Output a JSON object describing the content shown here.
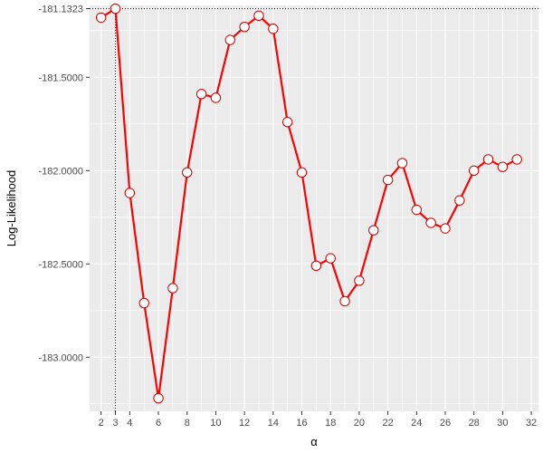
{
  "chart_data": {
    "type": "line",
    "title": "",
    "xlabel": "α",
    "ylabel": "Log-Likelihood",
    "xlim": [
      1.2,
      32.5
    ],
    "ylim": [
      -183.29,
      -181.115
    ],
    "x_ticks": [
      2,
      3,
      4,
      6,
      8,
      10,
      12,
      14,
      16,
      18,
      20,
      22,
      24,
      26,
      28,
      30,
      32
    ],
    "x_tick_labels": [
      "2",
      "3",
      "4",
      "6",
      "8",
      "10",
      "12",
      "14",
      "16",
      "18",
      "20",
      "22",
      "24",
      "26",
      "28",
      "30",
      "32"
    ],
    "x_minor_ticks": [
      5,
      7,
      9,
      11,
      13,
      15,
      17,
      19,
      21,
      23,
      25,
      27,
      29,
      31
    ],
    "y_ticks": [
      -183.0,
      -182.5,
      -182.0,
      -181.5,
      -181.1323
    ],
    "y_tick_labels": [
      "-183.0000",
      "-182.5000",
      "-182.0000",
      "-181.5000",
      "-181.1323"
    ],
    "y_minor_ticks": [
      -183.25,
      -182.75,
      -182.25,
      -181.75,
      -181.25
    ],
    "grid": true,
    "reference_lines": {
      "x": 3,
      "y": -181.1323
    },
    "series": [
      {
        "x": [
          2,
          3,
          4,
          5,
          6,
          7,
          8,
          9,
          10,
          11,
          12,
          13,
          14,
          15,
          16,
          17,
          18,
          19,
          20,
          21,
          22,
          23,
          24,
          25,
          26,
          27,
          28,
          29,
          30,
          31
        ],
        "values": [
          -181.18,
          -181.1323,
          -182.12,
          -182.71,
          -183.22,
          -182.63,
          -182.01,
          -181.59,
          -181.61,
          -181.3,
          -181.23,
          -181.17,
          -181.24,
          -181.74,
          -182.01,
          -182.51,
          -182.47,
          -182.7,
          -182.59,
          -182.32,
          -182.05,
          -181.96,
          -182.21,
          -182.28,
          -182.31,
          -182.16,
          -182.0,
          -181.94,
          -181.98,
          -181.94
        ]
      }
    ],
    "colors": {
      "line": "#ff0000",
      "marker_edge": "#cc0000",
      "marker_fill": "#ffffff",
      "panel": "#ebebeb",
      "grid": "#ffffff"
    }
  }
}
